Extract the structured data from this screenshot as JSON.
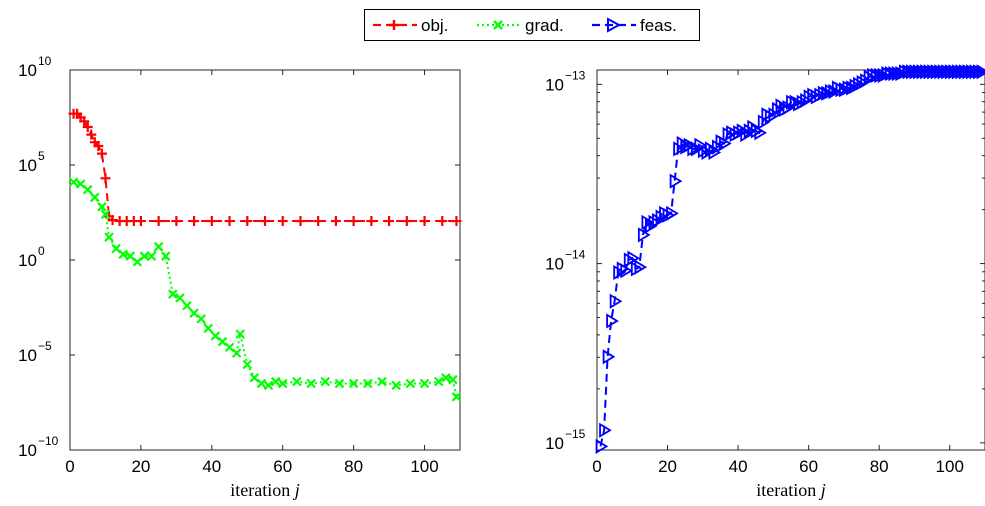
{
  "legend": {
    "entries": [
      {
        "label": "obj.",
        "color": "#ff0000",
        "marker": "plus",
        "dash": "8,5"
      },
      {
        "label": "grad.",
        "color": "#00ff00",
        "marker": "x",
        "dash": "2,3"
      },
      {
        "label": "feas.",
        "color": "#0000ff",
        "marker": "triangle-right",
        "dash": "8,5"
      }
    ]
  },
  "chart_data": [
    {
      "type": "line",
      "yscale": "log",
      "xlabel_text": "iteration",
      "xlabel_var": "j",
      "xlim": [
        0,
        110
      ],
      "xticks": [
        0,
        20,
        40,
        60,
        80,
        100
      ],
      "ylim_exp": [
        -10,
        10
      ],
      "yticks_exp": [
        -10,
        -5,
        0,
        5,
        10
      ],
      "series": [
        {
          "name": "obj.",
          "color": "#ff0000",
          "x": [
            1,
            2,
            3,
            4,
            5,
            6,
            7,
            8,
            9,
            10,
            11,
            12,
            14,
            16,
            18,
            20,
            25,
            30,
            35,
            40,
            45,
            50,
            55,
            60,
            65,
            70,
            75,
            80,
            85,
            90,
            95,
            100,
            105,
            109
          ],
          "log10_y": [
            7.7,
            7.7,
            7.5,
            7.3,
            7.0,
            6.6,
            6.2,
            6.0,
            5.6,
            4.3,
            2.3,
            2.1,
            2.05,
            2.05,
            2.05,
            2.05,
            2.05,
            2.05,
            2.05,
            2.05,
            2.05,
            2.05,
            2.05,
            2.05,
            2.05,
            2.05,
            2.05,
            2.05,
            2.05,
            2.05,
            2.05,
            2.05,
            2.05,
            2.05
          ]
        },
        {
          "name": "grad.",
          "color": "#00ff00",
          "x": [
            1,
            3,
            5,
            7,
            9,
            10,
            11,
            13,
            15,
            17,
            19,
            21,
            23,
            25,
            27,
            29,
            31,
            33,
            35,
            37,
            39,
            41,
            43,
            45,
            47,
            48,
            50,
            52,
            54,
            56,
            58,
            60,
            64,
            68,
            72,
            76,
            80,
            84,
            88,
            92,
            96,
            100,
            104,
            106,
            108,
            109
          ],
          "log10_y": [
            4.1,
            4.0,
            3.7,
            3.3,
            2.8,
            2.4,
            1.2,
            0.6,
            0.3,
            0.2,
            -0.1,
            0.2,
            0.2,
            0.7,
            0.2,
            -1.8,
            -2.0,
            -2.4,
            -2.8,
            -3.1,
            -3.6,
            -4.0,
            -4.3,
            -4.6,
            -4.9,
            -3.9,
            -5.5,
            -6.2,
            -6.5,
            -6.6,
            -6.4,
            -6.5,
            -6.4,
            -6.5,
            -6.4,
            -6.5,
            -6.5,
            -6.5,
            -6.4,
            -6.6,
            -6.5,
            -6.5,
            -6.4,
            -6.2,
            -6.3,
            -7.2
          ]
        }
      ]
    },
    {
      "type": "line",
      "yscale": "log",
      "xlabel_text": "iteration",
      "xlabel_var": "j",
      "xlim": [
        0,
        110
      ],
      "xticks": [
        0,
        20,
        40,
        60,
        80,
        100
      ],
      "ylim_exp": [
        -15.04,
        -12.92
      ],
      "yticks_exp": [
        -15,
        -14,
        -13
      ],
      "series": [
        {
          "name": "feas.",
          "color": "#0000ff",
          "x": [
            1,
            2,
            3,
            4,
            5,
            6,
            7,
            8,
            9,
            10,
            11,
            12,
            13,
            14,
            15,
            16,
            17,
            18,
            19,
            20,
            21,
            22,
            23,
            24,
            25,
            26,
            27,
            28,
            29,
            30,
            31,
            32,
            33,
            34,
            35,
            36,
            37,
            38,
            39,
            40,
            41,
            42,
            43,
            44,
            45,
            46,
            47,
            48,
            49,
            50,
            51,
            52,
            53,
            54,
            55,
            56,
            57,
            58,
            59,
            60,
            61,
            62,
            63,
            64,
            65,
            66,
            67,
            68,
            69,
            70,
            71,
            72,
            73,
            74,
            75,
            76,
            77,
            78,
            79,
            80,
            81,
            82,
            83,
            84,
            85,
            86,
            87,
            88,
            89,
            90,
            91,
            92,
            93,
            94,
            95,
            96,
            97,
            98,
            99,
            100,
            101,
            102,
            103,
            104,
            105,
            106,
            107,
            108,
            109
          ],
          "log10_y": [
            -15.02,
            -14.93,
            -14.52,
            -14.32,
            -14.21,
            -14.05,
            -14.03,
            -14.04,
            -13.98,
            -13.97,
            -14.03,
            -14.02,
            -13.84,
            -13.77,
            -13.79,
            -13.77,
            -13.76,
            -13.74,
            -13.72,
            -13.73,
            -13.72,
            -13.54,
            -13.36,
            -13.33,
            -13.35,
            -13.34,
            -13.36,
            -13.36,
            -13.34,
            -13.37,
            -13.38,
            -13.36,
            -13.38,
            -13.35,
            -13.32,
            -13.33,
            -13.28,
            -13.27,
            -13.28,
            -13.27,
            -13.26,
            -13.28,
            -13.26,
            -13.24,
            -13.26,
            -13.27,
            -13.21,
            -13.17,
            -13.18,
            -13.17,
            -13.14,
            -13.12,
            -13.14,
            -13.13,
            -13.1,
            -13.1,
            -13.11,
            -13.1,
            -13.09,
            -13.07,
            -13.06,
            -13.07,
            -13.06,
            -13.05,
            -13.05,
            -13.04,
            -13.04,
            -13.02,
            -13.03,
            -13.03,
            -13.02,
            -13.02,
            -13.01,
            -13.0,
            -12.99,
            -12.98,
            -12.96,
            -12.95,
            -12.95,
            -12.95,
            -12.95,
            -12.94,
            -12.94,
            -12.94,
            -12.94,
            -12.94,
            -12.93,
            -12.93,
            -12.93,
            -12.93,
            -12.93,
            -12.93,
            -12.93,
            -12.93,
            -12.93,
            -12.93,
            -12.93,
            -12.93,
            -12.93,
            -12.93,
            -12.93,
            -12.93,
            -12.93,
            -12.93,
            -12.93,
            -12.93,
            -12.93,
            -12.93,
            -12.93
          ]
        }
      ]
    }
  ]
}
